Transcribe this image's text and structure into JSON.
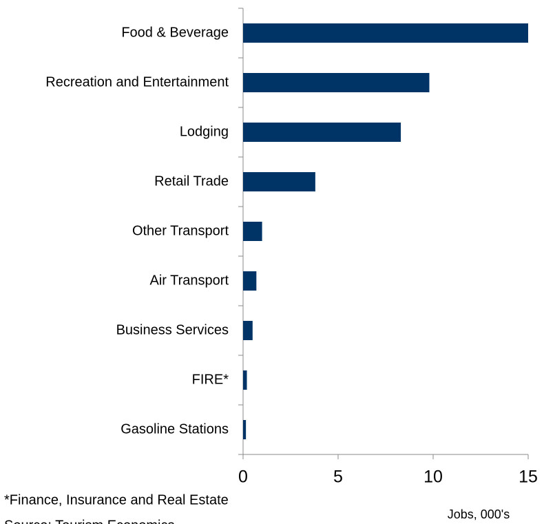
{
  "chart_data": {
    "type": "barh",
    "categories": [
      "Food & Beverage",
      "Recreation and Entertainment",
      "Lodging",
      "Retail Trade",
      "Other Transport",
      "Air Transport",
      "Business Services",
      "FIRE*",
      "Gasoline Stations"
    ],
    "values": [
      15.0,
      9.8,
      8.3,
      3.8,
      1.0,
      0.7,
      0.5,
      0.2,
      0.15
    ],
    "color": "#003366",
    "xlim": [
      0,
      15
    ],
    "xticks": [
      0,
      5,
      10,
      15
    ],
    "xlabel": "Jobs, 000's",
    "footnotes": [
      "*Finance, Insurance and Real Estate",
      "Source: Tourism Economics"
    ]
  }
}
